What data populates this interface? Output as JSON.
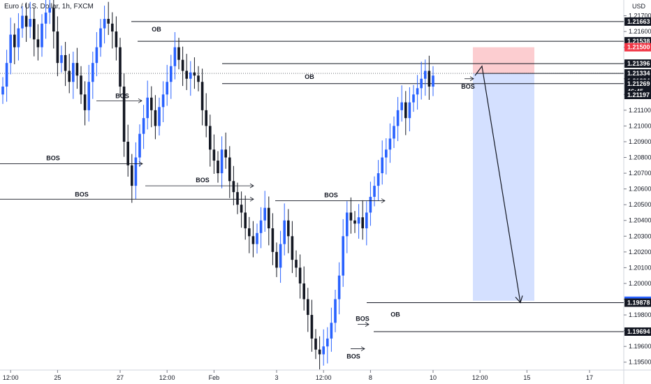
{
  "chart_data": {
    "type": "candlestick",
    "title": "Euro / U.S. Dollar, 1h, FXCM",
    "currency": "USD",
    "ylim": [
      1.1945,
      1.218
    ],
    "y_ticks": [
      1.217,
      1.216,
      1.215,
      1.214,
      1.213,
      1.212,
      1.211,
      1.21,
      1.209,
      1.208,
      1.207,
      1.206,
      1.205,
      1.204,
      1.203,
      1.202,
      1.201,
      1.2,
      1.199,
      1.198,
      1.197,
      1.196,
      1.195
    ],
    "x_ticks": [
      {
        "label": "12:00",
        "i": 2
      },
      {
        "label": "25",
        "i": 14
      },
      {
        "label": "27",
        "i": 30
      },
      {
        "label": "12:00",
        "i": 42
      },
      {
        "label": "Feb",
        "i": 54
      },
      {
        "label": "3",
        "i": 70
      },
      {
        "label": "12:00",
        "i": 82
      },
      {
        "label": "8",
        "i": 94
      },
      {
        "label": "10",
        "i": 110
      },
      {
        "label": "12:00",
        "i": 122
      },
      {
        "label": "15",
        "i": 134
      },
      {
        "label": "17",
        "i": 150
      }
    ],
    "price_tags": [
      {
        "label": "1.21663",
        "value": 1.21663,
        "color": "#131722"
      },
      {
        "label": "1.21538",
        "value": 1.21538,
        "color": "#131722"
      },
      {
        "label": "1.21500",
        "value": 1.215,
        "color": "#f23645"
      },
      {
        "label": "1.21396",
        "value": 1.21396,
        "color": "#131722"
      },
      {
        "label": "1.21334",
        "value": 1.21334,
        "color": "#131722"
      },
      {
        "label": "1.21334",
        "value": 1.21334,
        "color": "#131722",
        "offset": 11
      },
      {
        "label": "1.21269",
        "value": 1.21269,
        "color": "#131722"
      },
      {
        "label": "46:45",
        "value": 1.21269,
        "color": "#131722",
        "offset": 11
      },
      {
        "label": "1.21197",
        "value": 1.21197,
        "color": "#131722"
      },
      {
        "label": "1.19890",
        "value": 1.1989,
        "color": "#2962ff"
      },
      {
        "label": "1.19878",
        "value": 1.19878,
        "color": "#131722"
      },
      {
        "label": "1.19694",
        "value": 1.19694,
        "color": "#131722"
      }
    ],
    "closes": [
      1.2125,
      1.214,
      1.2158,
      1.215,
      1.2162,
      1.217,
      1.2163,
      1.2168,
      1.2155,
      1.215,
      1.2165,
      1.2172,
      1.2175,
      1.216,
      1.214,
      1.2145,
      1.2135,
      1.2128,
      1.214,
      1.2132,
      1.212,
      1.211,
      1.2128,
      1.214,
      1.215,
      1.2162,
      1.2168,
      1.2165,
      1.216,
      1.215,
      1.2125,
      1.209,
      1.2075,
      1.2062,
      1.208,
      1.2095,
      1.2105,
      1.2118,
      1.211,
      1.21,
      1.2112,
      1.212,
      1.2128,
      1.2138,
      1.215,
      1.2142,
      1.2135,
      1.213,
      1.2134,
      1.2132,
      1.2128,
      1.211,
      1.21,
      1.2085,
      1.2078,
      1.207,
      1.2085,
      1.208,
      1.2065,
      1.2058,
      1.205,
      1.2045,
      1.2035,
      1.203,
      1.2025,
      1.2032,
      1.204,
      1.2048,
      1.2035,
      1.202,
      1.201,
      1.2025,
      1.204,
      1.203,
      1.2015,
      1.201,
      1.2,
      1.199,
      1.198,
      1.1965,
      1.1958,
      1.1955,
      1.196,
      1.1965,
      1.1975,
      1.199,
      1.2005,
      1.203,
      1.2045,
      1.204,
      1.2038,
      1.2042,
      1.2035,
      1.2045,
      1.2055,
      1.2062,
      1.207,
      1.208,
      1.2085,
      1.2092,
      1.21,
      1.211,
      1.2115,
      1.2105,
      1.2115,
      1.212,
      1.2124,
      1.213,
      1.2135,
      1.2125,
      1.2132
    ]
  },
  "annotations": {
    "ob": [
      "OB",
      "OB",
      "OB"
    ],
    "bos": [
      "BOS",
      "BOS",
      "BOS",
      "BOS",
      "BOS",
      "BOS",
      "BOS",
      "BOS"
    ]
  },
  "position": {
    "stop": 1.215,
    "entry": 1.21334,
    "target": 1.1989
  }
}
